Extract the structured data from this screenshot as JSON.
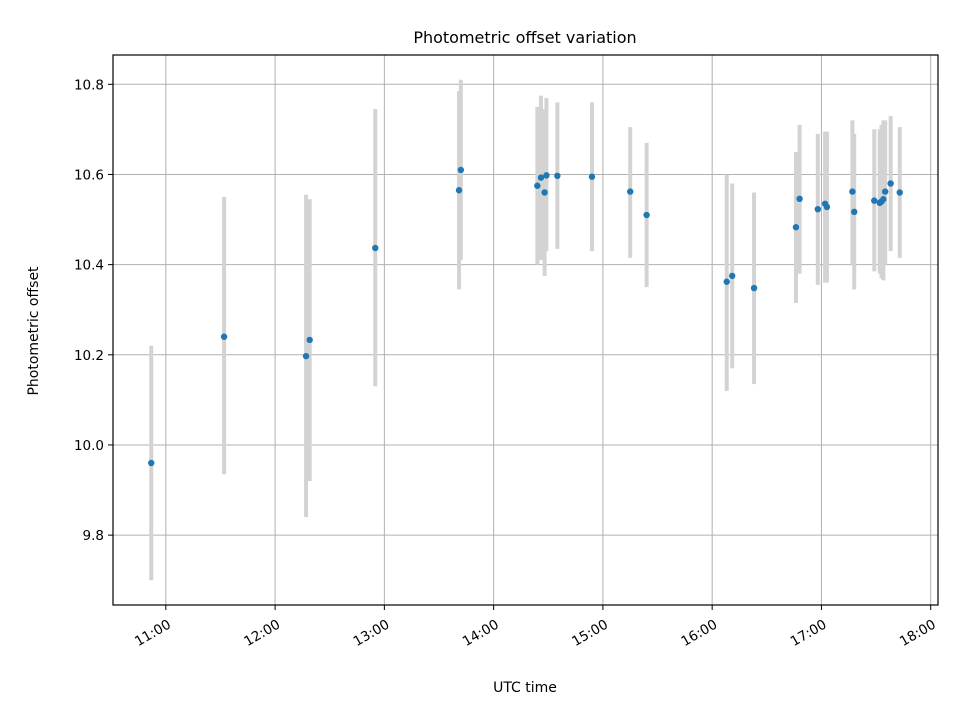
{
  "chart_data": {
    "type": "scatter",
    "title": "Photometric offset variation",
    "xlabel": "UTC time",
    "ylabel": "Photometric offset",
    "xlim": [
      "10:31",
      "18:04"
    ],
    "ylim": [
      9.645,
      10.865
    ],
    "grid": true,
    "x_ticks": [
      "11:00",
      "12:00",
      "13:00",
      "14:00",
      "15:00",
      "16:00",
      "17:00",
      "18:00"
    ],
    "y_ticks": [
      9.8,
      10.0,
      10.2,
      10.4,
      10.6,
      10.8
    ],
    "point_color": "#1f77b4",
    "errorbar_color": "#d3d3d3",
    "points": [
      {
        "time": "10:52",
        "y": 9.96,
        "ylow": 9.7,
        "yhigh": 10.22
      },
      {
        "time": "11:32",
        "y": 10.24,
        "ylow": 9.935,
        "yhigh": 10.55
      },
      {
        "time": "12:17",
        "y": 10.197,
        "ylow": 9.84,
        "yhigh": 10.555
      },
      {
        "time": "12:19",
        "y": 10.233,
        "ylow": 9.92,
        "yhigh": 10.545
      },
      {
        "time": "12:55",
        "y": 10.437,
        "ylow": 10.13,
        "yhigh": 10.745
      },
      {
        "time": "13:41",
        "y": 10.565,
        "ylow": 10.345,
        "yhigh": 10.785
      },
      {
        "time": "13:42",
        "y": 10.61,
        "ylow": 10.41,
        "yhigh": 10.81
      },
      {
        "time": "14:24",
        "y": 10.575,
        "ylow": 10.4,
        "yhigh": 10.75
      },
      {
        "time": "14:26",
        "y": 10.593,
        "ylow": 10.41,
        "yhigh": 10.775
      },
      {
        "time": "14:28",
        "y": 10.56,
        "ylow": 10.375,
        "yhigh": 10.745
      },
      {
        "time": "14:29",
        "y": 10.598,
        "ylow": 10.43,
        "yhigh": 10.77
      },
      {
        "time": "14:35",
        "y": 10.597,
        "ylow": 10.435,
        "yhigh": 10.76
      },
      {
        "time": "14:54",
        "y": 10.595,
        "ylow": 10.43,
        "yhigh": 10.76
      },
      {
        "time": "15:15",
        "y": 10.562,
        "ylow": 10.415,
        "yhigh": 10.705
      },
      {
        "time": "15:24",
        "y": 10.51,
        "ylow": 10.35,
        "yhigh": 10.67
      },
      {
        "time": "16:08",
        "y": 10.362,
        "ylow": 10.12,
        "yhigh": 10.6
      },
      {
        "time": "16:11",
        "y": 10.375,
        "ylow": 10.17,
        "yhigh": 10.58
      },
      {
        "time": "16:23",
        "y": 10.348,
        "ylow": 10.135,
        "yhigh": 10.56
      },
      {
        "time": "16:46",
        "y": 10.483,
        "ylow": 10.315,
        "yhigh": 10.65
      },
      {
        "time": "16:48",
        "y": 10.546,
        "ylow": 10.38,
        "yhigh": 10.71
      },
      {
        "time": "16:58",
        "y": 10.523,
        "ylow": 10.355,
        "yhigh": 10.69
      },
      {
        "time": "17:02",
        "y": 10.535,
        "ylow": 10.36,
        "yhigh": 10.695
      },
      {
        "time": "17:03",
        "y": 10.528,
        "ylow": 10.36,
        "yhigh": 10.695
      },
      {
        "time": "17:17",
        "y": 10.562,
        "ylow": 10.4,
        "yhigh": 10.72
      },
      {
        "time": "17:18",
        "y": 10.517,
        "ylow": 10.345,
        "yhigh": 10.69
      },
      {
        "time": "17:29",
        "y": 10.542,
        "ylow": 10.385,
        "yhigh": 10.7
      },
      {
        "time": "17:32",
        "y": 10.537,
        "ylow": 10.38,
        "yhigh": 10.7
      },
      {
        "time": "17:33",
        "y": 10.54,
        "ylow": 10.37,
        "yhigh": 10.71
      },
      {
        "time": "17:34",
        "y": 10.545,
        "ylow": 10.365,
        "yhigh": 10.72
      },
      {
        "time": "17:35",
        "y": 10.562,
        "ylow": 10.4,
        "yhigh": 10.72
      },
      {
        "time": "17:38",
        "y": 10.58,
        "ylow": 10.43,
        "yhigh": 10.73
      },
      {
        "time": "17:43",
        "y": 10.56,
        "ylow": 10.415,
        "yhigh": 10.705
      }
    ]
  }
}
